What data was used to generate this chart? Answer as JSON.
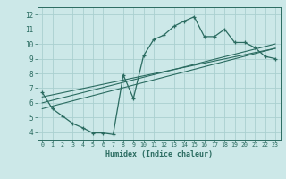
{
  "title": "",
  "xlabel": "Humidex (Indice chaleur)",
  "bg_color": "#cce8e8",
  "line_color": "#2a6b60",
  "grid_color": "#aad0d0",
  "xlim": [
    -0.5,
    23.5
  ],
  "ylim": [
    3.5,
    12.5
  ],
  "xticks": [
    0,
    1,
    2,
    3,
    4,
    5,
    6,
    7,
    8,
    9,
    10,
    11,
    12,
    13,
    14,
    15,
    16,
    17,
    18,
    19,
    20,
    21,
    22,
    23
  ],
  "yticks": [
    4,
    5,
    6,
    7,
    8,
    9,
    10,
    11,
    12
  ],
  "main_x": [
    0,
    1,
    2,
    3,
    4,
    5,
    6,
    7,
    8,
    9,
    10,
    11,
    12,
    13,
    14,
    15,
    16,
    17,
    18,
    19,
    20,
    21,
    22,
    23
  ],
  "main_y": [
    6.7,
    5.6,
    5.1,
    4.6,
    4.3,
    3.95,
    3.95,
    3.85,
    7.9,
    6.3,
    9.2,
    10.3,
    10.6,
    11.2,
    11.55,
    11.85,
    10.5,
    10.5,
    11.0,
    10.1,
    10.1,
    9.75,
    9.15,
    9.0
  ],
  "line1_x": [
    0,
    23
  ],
  "line1_y": [
    6.4,
    9.7
  ],
  "line2_x": [
    0,
    23
  ],
  "line2_y": [
    6.0,
    10.0
  ],
  "line3_x": [
    0,
    23
  ],
  "line3_y": [
    5.6,
    9.7
  ]
}
